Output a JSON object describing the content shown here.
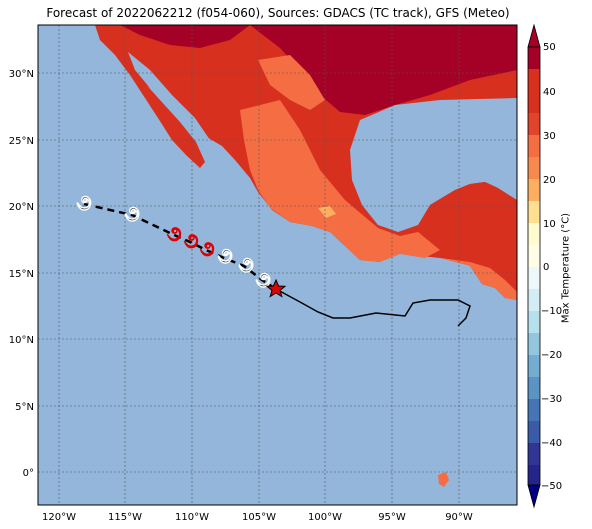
{
  "title": "Forecast of 2022062212 (f054-060), Sources: GDACS (TC track), GFS (Meteo)",
  "map": {
    "lon_ticks": [
      "120°W",
      "115°W",
      "110°W",
      "105°W",
      "100°W",
      "95°W",
      "90°W"
    ],
    "lat_ticks": [
      "30°N",
      "25°N",
      "20°N",
      "15°N",
      "10°N",
      "5°N",
      "0°"
    ]
  },
  "colorbar": {
    "label": "Max Temperature (°C)",
    "ticks": [
      "50",
      "40",
      "30",
      "20",
      "10",
      "0",
      "−10",
      "−20",
      "−30",
      "−40",
      "−50"
    ]
  }
}
